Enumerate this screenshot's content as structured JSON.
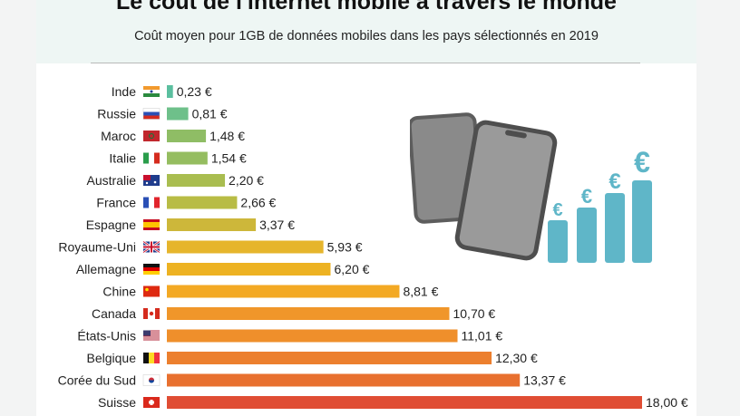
{
  "title": "Le coût de l'internet mobile à travers le monde",
  "subtitle": "Coût moyen pour 1GB de données mobiles dans les pays sélectionnés en 2019",
  "illustration": {
    "currency_symbol": "€"
  },
  "chart_data": {
    "type": "bar",
    "orientation": "horizontal",
    "categories": [
      "Inde",
      "Russie",
      "Maroc",
      "Italie",
      "Australie",
      "France",
      "Espagne",
      "Royaume-Uni",
      "Allemagne",
      "Chine",
      "Canada",
      "États-Unis",
      "Belgique",
      "Corée du Sud",
      "Suisse"
    ],
    "values": [
      0.23,
      0.81,
      1.48,
      1.54,
      2.2,
      2.66,
      3.37,
      5.93,
      6.2,
      8.81,
      10.7,
      11.01,
      12.3,
      13.37,
      18.0
    ],
    "value_labels": [
      "0,23 €",
      "0,81 €",
      "1,48 €",
      "1,54 €",
      "2,20 €",
      "2,66 €",
      "3,37 €",
      "5,93 €",
      "6,20 €",
      "8,81 €",
      "10,70 €",
      "11,01 €",
      "12,30 €",
      "13,37 €",
      "18,00 €"
    ],
    "colors": [
      "#5bbf9f",
      "#6ec08a",
      "#8fbd65",
      "#95bd60",
      "#a9bd50",
      "#b8bc45",
      "#cdb73a",
      "#e6b52c",
      "#edb222",
      "#f3a924",
      "#f0962a",
      "#ef8f2b",
      "#ec7f2e",
      "#e8702f",
      "#e04d34"
    ],
    "flags": [
      "india",
      "russia",
      "morocco",
      "italy",
      "australia",
      "france",
      "spain",
      "uk",
      "germany",
      "china",
      "canada",
      "usa",
      "belgium",
      "korea",
      "switzerland"
    ],
    "unit": "€",
    "xlim": [
      0,
      18
    ]
  }
}
